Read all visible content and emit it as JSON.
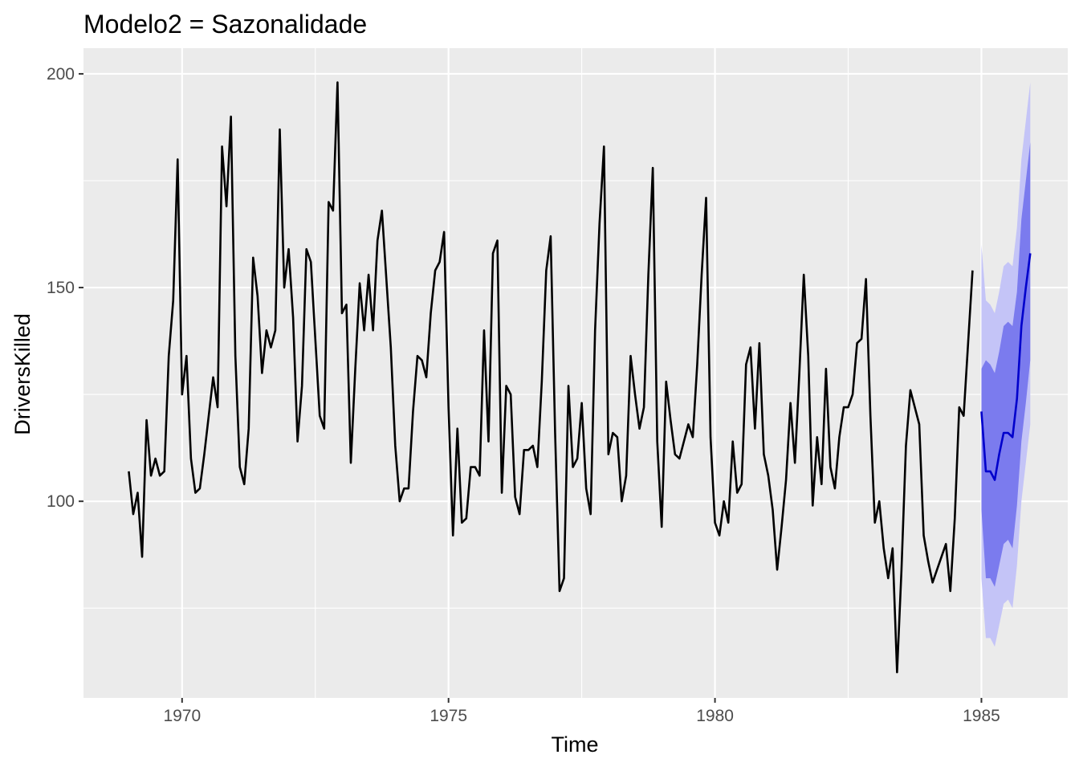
{
  "chart_data": {
    "type": "line",
    "title": "Modelo2 = Sazonalidade",
    "xlabel": "Time",
    "ylabel": "DriversKilled",
    "xlim": [
      1968.15,
      1986.62
    ],
    "ylim": [
      54,
      206
    ],
    "x_ticks": [
      1970,
      1975,
      1980,
      1985
    ],
    "x_tick_labels": [
      "1970",
      "1975",
      "1980",
      "1985"
    ],
    "y_ticks": [
      100,
      150,
      200
    ],
    "y_tick_labels": [
      "100",
      "150",
      "200"
    ],
    "grid": true,
    "legend": "none",
    "colors": {
      "panel_background": "#ebebeb",
      "grid_major": "#ffffff",
      "series_line": "#000000",
      "forecast_line": "#0000cc",
      "band_80": "#7b7bee",
      "band_95": "#c4c4f7"
    },
    "series": [
      {
        "role": "observed",
        "x_start": 1969.0,
        "x_step": 0.083333,
        "values": [
          107,
          97,
          102,
          87,
          119,
          106,
          110,
          106,
          107,
          134,
          147,
          180,
          125,
          134,
          110,
          102,
          103,
          111,
          120,
          129,
          122,
          183,
          169,
          190,
          134,
          108,
          104,
          117,
          157,
          148,
          130,
          140,
          136,
          140,
          187,
          150,
          159,
          143,
          114,
          127,
          159,
          156,
          138,
          120,
          117,
          170,
          168,
          198,
          144,
          146,
          109,
          131,
          151,
          140,
          153,
          140,
          161,
          168,
          152,
          136,
          113,
          100,
          103,
          103,
          121,
          134,
          133,
          129,
          144,
          154,
          156,
          163,
          122,
          92,
          117,
          95,
          96,
          108,
          108,
          106,
          140,
          114,
          158,
          161,
          102,
          127,
          125,
          101,
          97,
          112,
          112,
          113,
          108,
          128,
          154,
          162,
          116,
          79,
          82,
          127,
          108,
          110,
          123,
          103,
          97,
          140,
          165,
          183,
          111,
          116,
          115,
          100,
          106,
          134,
          125,
          117,
          122,
          153,
          178,
          114,
          94,
          128,
          119,
          111,
          110,
          114,
          118,
          115,
          132,
          153,
          171,
          115,
          95,
          92,
          100,
          95,
          114,
          102,
          104,
          132,
          136,
          117,
          137,
          111,
          106,
          98,
          84,
          94,
          105,
          123,
          109,
          130,
          153,
          134,
          99,
          115,
          104,
          131,
          108,
          103,
          115,
          122,
          122,
          125,
          137,
          138,
          152,
          120,
          95,
          100,
          89,
          82,
          89,
          60,
          84,
          113,
          126,
          122,
          118,
          92,
          86,
          81,
          84,
          87,
          90,
          79,
          96,
          122,
          120,
          137,
          154
        ]
      },
      {
        "role": "forecast",
        "x_start": 1985.0,
        "x_step": 0.083333,
        "values": [
          121,
          107,
          107,
          105,
          111,
          116,
          116,
          115,
          124,
          141,
          150,
          158
        ],
        "lo80": [
          98,
          82,
          82,
          80,
          85,
          90,
          91,
          89,
          99,
          114,
          123,
          133
        ],
        "hi80": [
          131,
          133,
          132,
          130,
          135,
          141,
          142,
          141,
          149,
          166,
          175,
          184
        ],
        "lo95": [
          82,
          68,
          68,
          66,
          71,
          76,
          77,
          75,
          85,
          100,
          109,
          118
        ],
        "hi95": [
          160,
          147,
          146,
          144,
          149,
          155,
          156,
          155,
          164,
          180,
          189,
          198
        ]
      }
    ]
  }
}
